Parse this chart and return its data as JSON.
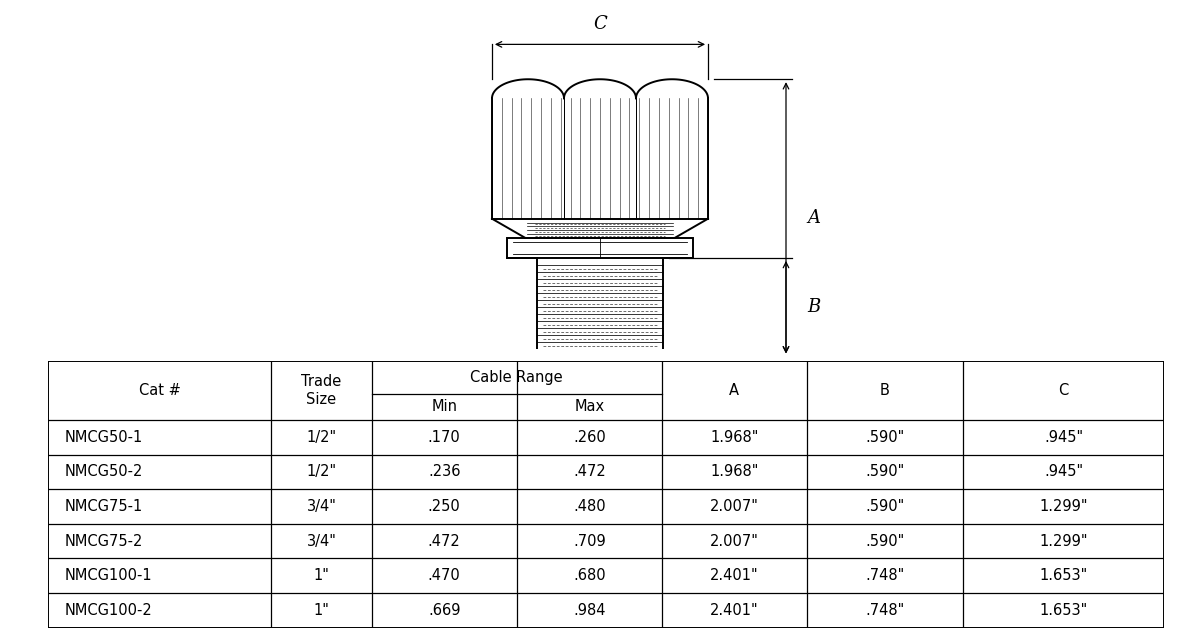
{
  "bg_color": "#ffffff",
  "line_color": "#000000",
  "rows": [
    [
      "NMCG50-1",
      "1/2\"",
      ".170",
      ".260",
      "1.968\"",
      ".590\"",
      ".945\""
    ],
    [
      "NMCG50-2",
      "1/2\"",
      ".236",
      ".472",
      "1.968\"",
      ".590\"",
      ".945\""
    ],
    [
      "NMCG75-1",
      "3/4\"",
      ".250",
      ".480",
      "2.007\"",
      ".590\"",
      "1.299\""
    ],
    [
      "NMCG75-2",
      "3/4\"",
      ".472",
      ".709",
      "2.007\"",
      ".590\"",
      "1.299\""
    ],
    [
      "NMCG100-1",
      "1\"",
      ".470",
      ".680",
      "2.401\"",
      ".748\"",
      "1.653\""
    ],
    [
      "NMCG100-2",
      "1\"",
      ".669",
      ".984",
      "2.401\"",
      ".748\"",
      "1.653\""
    ]
  ]
}
